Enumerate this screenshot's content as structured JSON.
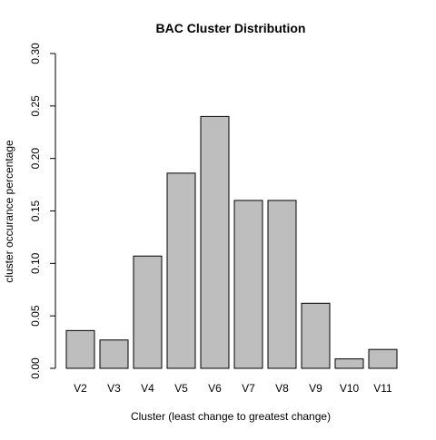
{
  "chart_data": {
    "type": "bar",
    "title": "BAC Cluster Distribution",
    "xlabel": "Cluster (least change to greatest change)",
    "ylabel": "cluster occurance percentage",
    "categories": [
      "V2",
      "V3",
      "V4",
      "V5",
      "V6",
      "V7",
      "V8",
      "V9",
      "V10",
      "V11"
    ],
    "values": [
      0.036,
      0.027,
      0.107,
      0.186,
      0.24,
      0.16,
      0.16,
      0.062,
      0.009,
      0.018
    ],
    "ylim": [
      0,
      0.3
    ],
    "yticks": [
      0.0,
      0.05,
      0.1,
      0.15,
      0.2,
      0.25,
      0.3
    ],
    "ytick_labels": [
      "0.00",
      "0.05",
      "0.10",
      "0.15",
      "0.20",
      "0.25",
      "0.30"
    ],
    "bar_color": "#bebebe",
    "bar_border_color": "#000000",
    "grid": false,
    "legend": "none"
  }
}
